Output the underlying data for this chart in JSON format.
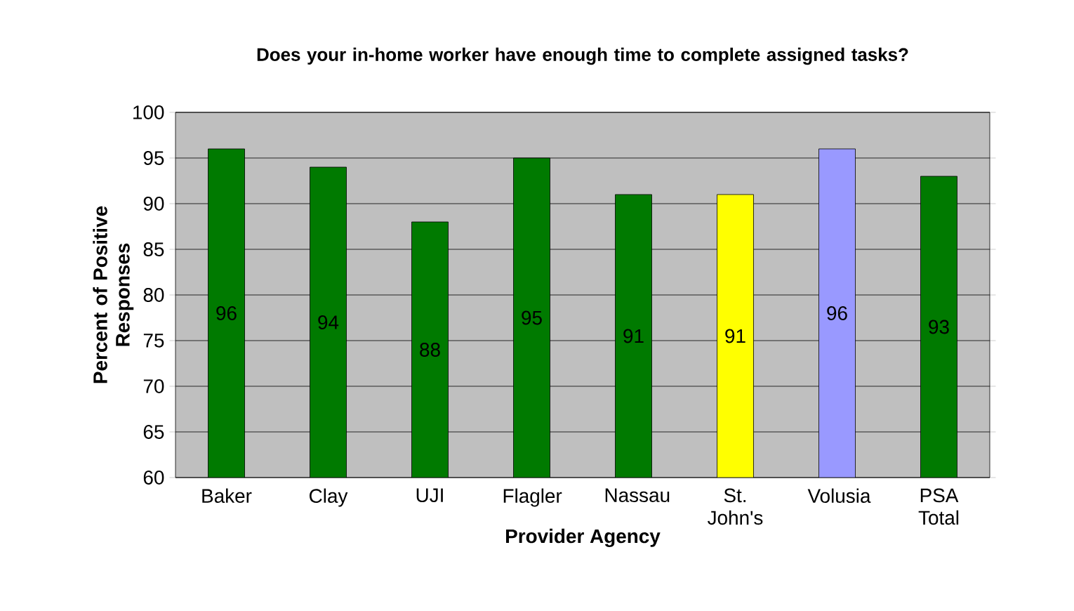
{
  "chart_data": {
    "type": "bar",
    "title": "Does your in-home worker have enough time to complete assigned tasks?",
    "xlabel": "Provider Agency",
    "ylabel": "Percent of Positive Responses",
    "categories": [
      "Baker",
      "Clay",
      "UJI",
      "Flagler",
      "Nassau",
      "St. John's",
      "Volusia",
      "PSA Total"
    ],
    "values": [
      96,
      94,
      88,
      95,
      91,
      91,
      96,
      93
    ],
    "colors": [
      "#007a00",
      "#007a00",
      "#007a00",
      "#007a00",
      "#007a00",
      "#ffff00",
      "#9999ff",
      "#007a00"
    ],
    "ylim": [
      60,
      100
    ],
    "yticks": [
      60,
      65,
      70,
      75,
      80,
      85,
      90,
      95,
      100
    ],
    "grid": "y",
    "data_labels": true
  }
}
